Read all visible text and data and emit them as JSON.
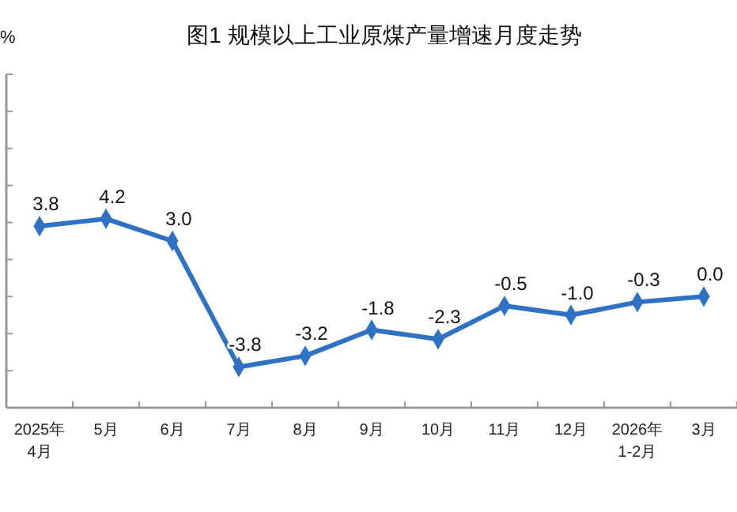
{
  "chart_data": {
    "type": "line",
    "title": "图1  规模以上工业原煤产量增速月度走势",
    "ylabel": "%",
    "categories": [
      "2025年\n4月",
      "5月",
      "6月",
      "7月",
      "8月",
      "9月",
      "10月",
      "11月",
      "12月",
      "2026年\n1-2月",
      "3月"
    ],
    "series": [
      {
        "color": "#2f72c4",
        "values": [
          3.8,
          4.2,
          3.0,
          -3.8,
          -3.2,
          -1.8,
          -2.3,
          -0.5,
          -1.0,
          -0.3,
          0.0
        ],
        "value_labels": [
          "3.8",
          "4.2",
          "3.0",
          "-3.8",
          "-3.2",
          "-1.8",
          "-2.3",
          "-0.5",
          "-1.0",
          "-0.3",
          "0.0"
        ]
      }
    ],
    "ylim": [
      -6,
      12
    ],
    "yticks": [
      {
        "value": -6,
        "label": null
      },
      {
        "value": -4,
        "label": null
      },
      {
        "value": -2,
        "label": null
      },
      {
        "value": 0,
        "label": null
      },
      {
        "value": 2,
        "label": null
      },
      {
        "value": 4,
        "label": null
      },
      {
        "value": 6,
        "label": null
      },
      {
        "value": 8,
        "label": null
      },
      {
        "value": 10,
        "label": null
      },
      {
        "value": 12,
        "label": null
      }
    ],
    "tick_labels": "x",
    "marker": "diamond",
    "line_style": "solid"
  }
}
